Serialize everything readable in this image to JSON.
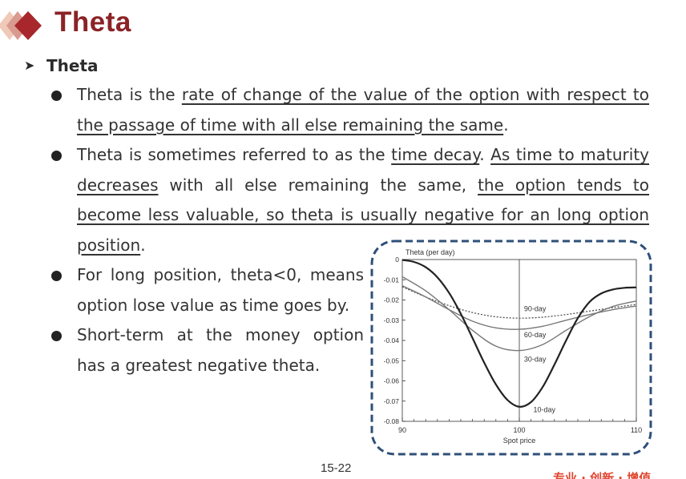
{
  "title": "Theta",
  "subheading": "Theta",
  "bullets": [
    {
      "t1": "Theta is the ",
      "u1": "rate of change of the value of the option with respect to the passage of time with all else remaining the same",
      "t2": "."
    },
    {
      "t1": "Theta is sometimes referred to as the ",
      "u1": "time decay",
      "t2": ". ",
      "u2": "As time to maturity decreases",
      "t3": " with all else remaining the same, ",
      "u3": "the option tends to become less valuable, so theta is usually negative for an long option position",
      "t4": "."
    },
    {
      "text": "For long position, theta<0, means option lose value as time goes by."
    },
    {
      "text": "Short-term at the money option has a greatest negative theta."
    }
  ],
  "chart_data": {
    "type": "line",
    "ylabel": "Theta (per day)",
    "xlabel": "Spot price",
    "xlim": [
      90,
      110
    ],
    "ylim": [
      -0.08,
      0
    ],
    "x_ticks": [
      "90",
      "100",
      "110"
    ],
    "y_ticks": [
      "0",
      "-0.01",
      "-0.02",
      "-0.03",
      "-0.04",
      "-0.05",
      "-0.06",
      "-0.07",
      "-0.08"
    ],
    "y_tick_values": [
      0,
      -0.01,
      -0.02,
      -0.03,
      -0.04,
      -0.05,
      -0.06,
      -0.07,
      -0.08
    ],
    "vline_x": 100,
    "series": [
      {
        "name": "90-day",
        "style": "dotted",
        "x": [
          90,
          92,
          94,
          96,
          98,
          100,
          102,
          104,
          106,
          108,
          110
        ],
        "y": [
          -0.0135,
          -0.0185,
          -0.0228,
          -0.0262,
          -0.0283,
          -0.029,
          -0.0285,
          -0.0272,
          -0.0255,
          -0.0238,
          -0.0222
        ]
      },
      {
        "name": "60-day",
        "style": "solid",
        "x": [
          90,
          92,
          94,
          96,
          98,
          100,
          102,
          104,
          106,
          108,
          110
        ],
        "y": [
          -0.013,
          -0.0185,
          -0.0248,
          -0.0305,
          -0.0338,
          -0.0345,
          -0.033,
          -0.03,
          -0.0272,
          -0.0248,
          -0.023
        ]
      },
      {
        "name": "30-day",
        "style": "solid",
        "x": [
          90,
          92,
          94,
          96,
          98,
          100,
          102,
          104,
          106,
          108,
          110
        ],
        "y": [
          -0.0085,
          -0.0155,
          -0.0248,
          -0.035,
          -0.0428,
          -0.045,
          -0.042,
          -0.035,
          -0.0282,
          -0.0232,
          -0.0205
        ]
      },
      {
        "name": "10-day",
        "style": "solid",
        "x": [
          90,
          91,
          92,
          93,
          94,
          95,
          96,
          97,
          98,
          99,
          100,
          101,
          102,
          103,
          104,
          105,
          106,
          107,
          108,
          109,
          110
        ],
        "y": [
          -0.0002,
          -0.0012,
          -0.0038,
          -0.0088,
          -0.0165,
          -0.0268,
          -0.0388,
          -0.051,
          -0.0618,
          -0.0695,
          -0.0728,
          -0.0705,
          -0.063,
          -0.052,
          -0.04,
          -0.029,
          -0.021,
          -0.0168,
          -0.0148,
          -0.014,
          -0.0138
        ]
      }
    ],
    "label_points": [
      {
        "text": "90-day",
        "x": 100.4,
        "y": -0.0255
      },
      {
        "text": "60-day",
        "x": 100.4,
        "y": -0.0385
      },
      {
        "text": "30-day",
        "x": 100.4,
        "y": -0.0505
      },
      {
        "text": "10-day",
        "x": 101.2,
        "y": -0.0755
      }
    ]
  },
  "page_number": "15-22",
  "footer_text": "专业 · 创新 · 增值",
  "colors": {
    "title": "#8b2326",
    "frame": "#2f4f7a",
    "line_dark": "#222222",
    "line_gray": "#777777"
  }
}
